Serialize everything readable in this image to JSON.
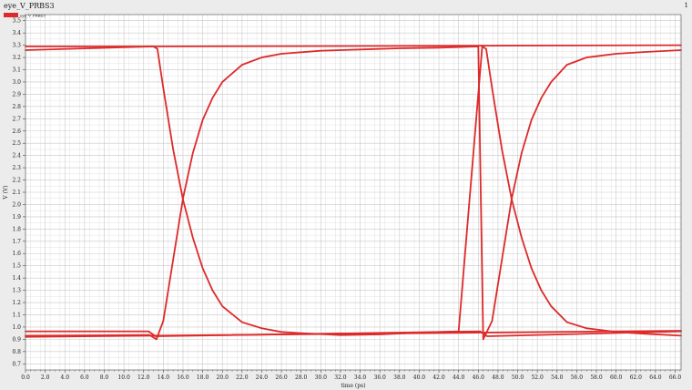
{
  "window": {
    "title": "eye_V_PRBS3",
    "index": "1"
  },
  "colors": {
    "background": "#ececec",
    "plot_area": "#ffffff",
    "grid_major": "#c8c8c8",
    "grid_minor": "#e2e2e2",
    "trace": "#dd2a2a"
  },
  "chart_data": {
    "type": "line",
    "title": "",
    "xlabel": "time (ps)",
    "ylabel": "V (V)",
    "xlim": [
      0,
      66.6
    ],
    "ylim": [
      0.65,
      3.55
    ],
    "x_ticks": [
      "0.0",
      "2.0",
      "4.0",
      "6.0",
      "8.0",
      "10.0",
      "12.0",
      "14.0",
      "16.0",
      "18.0",
      "20.0",
      "22.0",
      "24.0",
      "26.0",
      "28.0",
      "30.0",
      "32.0",
      "34.0",
      "36.0",
      "38.0",
      "40.0",
      "42.0",
      "44.0",
      "46.0",
      "48.0",
      "50.0",
      "52.0",
      "54.0",
      "56.0",
      "58.0",
      "60.0",
      "62.0",
      "64.0",
      "66.0"
    ],
    "y_ticks": [
      "0.7",
      "0.8",
      "0.9",
      "1.0",
      "1.1",
      "1.2",
      "1.3",
      "1.4",
      "1.5",
      "1.6",
      "1.7",
      "1.8",
      "1.9",
      "2.0",
      "2.1",
      "2.2",
      "2.3",
      "2.4",
      "2.5",
      "2.6",
      "2.7",
      "2.8",
      "2.9",
      "3.0",
      "3.1",
      "3.2",
      "3.3",
      "3.4",
      "3.5"
    ],
    "grid": true,
    "legend_position": "top-left",
    "series": [
      {
        "name": "eye_V_PRBS3",
        "traces": [
          {
            "x": [
              0,
              13.0,
              66.6
            ],
            "y": [
              3.29,
              3.29,
              3.3
            ]
          },
          {
            "x": [
              0,
              13.0,
              13.4,
              14.0,
              15.0,
              16.0,
              17.0,
              18.0,
              19.0,
              20.0,
              22.0,
              24.0,
              26.0,
              28.0,
              32.0,
              36.0,
              40.0,
              44.0,
              46.4,
              46.8,
              47.4,
              48.4,
              49.4,
              50.4,
              51.4,
              52.4,
              53.4,
              55.0,
              57.0,
              60.0,
              63.0,
              66.6
            ],
            "y": [
              3.26,
              3.29,
              3.27,
              2.95,
              2.45,
              2.04,
              1.73,
              1.48,
              1.3,
              1.17,
              1.04,
              0.99,
              0.96,
              0.95,
              0.935,
              0.94,
              0.955,
              0.965,
              3.29,
              3.27,
              2.95,
              2.45,
              2.04,
              1.73,
              1.48,
              1.3,
              1.17,
              1.04,
              0.99,
              0.96,
              0.945,
              0.93
            ]
          },
          {
            "x": [
              0,
              12.6,
              13.3,
              14.0,
              15.0,
              16.0,
              17.0,
              18.0,
              19.0,
              20.0,
              22.0,
              24.0,
              26.0,
              30.0,
              34.0,
              38.0,
              42.0,
              46.0,
              46.5,
              47.4,
              48.4,
              49.4,
              50.4,
              51.4,
              52.4,
              53.4,
              55.0,
              57.0,
              60.0,
              63.0,
              66.6
            ],
            "y": [
              0.93,
              0.935,
              0.9,
              1.05,
              1.55,
              2.05,
              2.42,
              2.69,
              2.87,
              3.0,
              3.14,
              3.2,
              3.23,
              3.255,
              3.265,
              3.275,
              3.28,
              3.29,
              0.9,
              1.05,
              1.55,
              2.05,
              2.42,
              2.69,
              2.87,
              3.0,
              3.14,
              3.2,
              3.23,
              3.245,
              3.26
            ]
          },
          {
            "x": [
              0,
              12.5,
              13.2,
              46.2,
              46.9,
              66.6
            ],
            "y": [
              0.965,
              0.965,
              0.925,
              0.965,
              0.925,
              0.965
            ]
          },
          {
            "x": [
              0,
              66.6
            ],
            "y": [
              0.92,
              0.97
            ]
          }
        ]
      }
    ]
  }
}
